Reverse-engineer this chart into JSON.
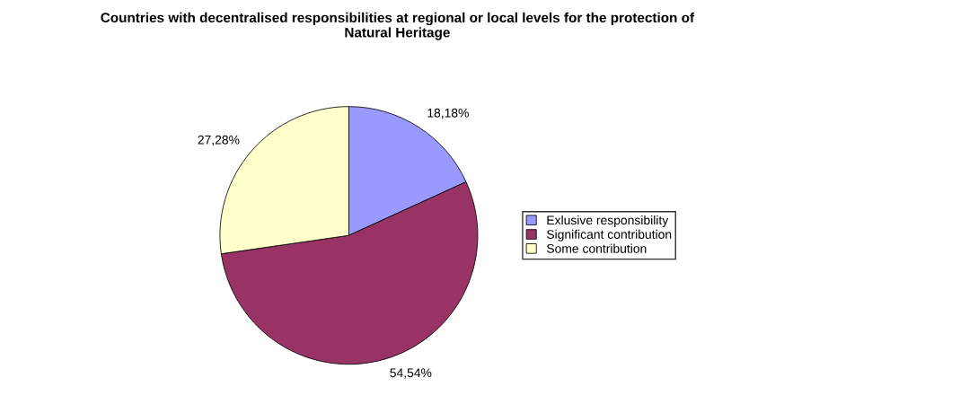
{
  "chart_data": {
    "type": "pie",
    "title": "Countries with decentralised responsibilities at regional or local levels for the protection of\nNatural Heritage",
    "categories": [
      "Exlusive responsibility",
      "Significant contribution",
      "Some contribution"
    ],
    "values": [
      18.18,
      54.54,
      27.28
    ],
    "value_labels": [
      "18,18%",
      "54,54%",
      "27,28%"
    ],
    "colors": [
      "#9999ff",
      "#993366",
      "#ffffcc"
    ],
    "legend": "right"
  }
}
